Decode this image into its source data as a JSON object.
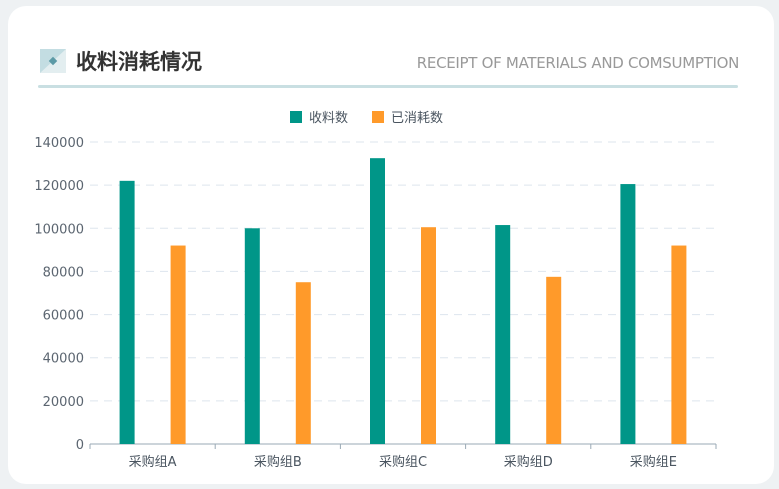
{
  "header": {
    "title": "收料消耗情况",
    "subtitle": "RECEIPT OF MATERIALS AND COMSUMPTION"
  },
  "colors": {
    "received": "#009688",
    "consumed": "#ff9a2a"
  },
  "chart_data": {
    "type": "bar",
    "categories": [
      "采购组A",
      "采购组B",
      "采购组C",
      "采购组D",
      "采购组E"
    ],
    "series": [
      {
        "name": "收料数",
        "values": [
          122000,
          100000,
          132500,
          101500,
          120500
        ]
      },
      {
        "name": "已消耗数",
        "values": [
          92000,
          75000,
          100500,
          77500,
          92000
        ]
      }
    ],
    "yticks": [
      "0",
      "20000",
      "40000",
      "60000",
      "80000",
      "100000",
      "120000",
      "140000"
    ],
    "ylim": [
      0,
      140000
    ],
    "legend": "top-center",
    "grid": true
  }
}
